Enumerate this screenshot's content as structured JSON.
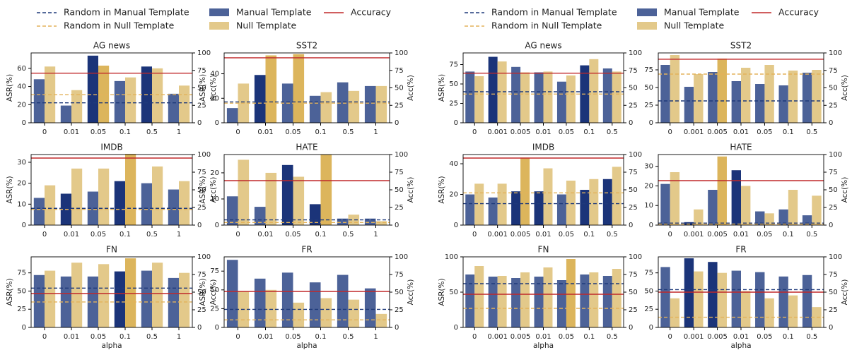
{
  "legends": [
    {
      "entries": [
        {
          "label": "Random in Manual Template",
          "color": "#1f3a7a",
          "style": "dashed"
        },
        {
          "label": "Random in Null Template",
          "color": "#e3b25a",
          "style": "dashed"
        },
        {
          "label": "Manual Template",
          "color": "#4c6298",
          "style": "patch"
        },
        {
          "label": "Null Template",
          "color": "#e3c98a",
          "style": "patch"
        },
        {
          "label": "Accuracy",
          "color": "#c0282a",
          "style": "solid"
        }
      ]
    },
    {
      "entries": [
        {
          "label": "Random in Manual Template",
          "color": "#1f3a7a",
          "style": "dashed"
        },
        {
          "label": "Random in Null Template",
          "color": "#e3b25a",
          "style": "dashed"
        },
        {
          "label": "Manual Template",
          "color": "#4c6298",
          "style": "patch"
        },
        {
          "label": "Null Template",
          "color": "#e3c98a",
          "style": "patch"
        },
        {
          "label": "Accuracy",
          "color": "#c0282a",
          "style": "solid"
        }
      ]
    }
  ],
  "chart_data": [
    {
      "type": "bar",
      "title": "AG news",
      "y_label": "ASR(%)",
      "y2_label": "Acc(%)",
      "categories": [
        "0",
        "0.01",
        "0.05",
        "0.1",
        "0.5",
        "1"
      ],
      "ylim": [
        0,
        77
      ],
      "yticks": [
        0,
        20,
        40,
        60
      ],
      "y2lim": [
        0,
        100
      ],
      "y2ticks": [
        0,
        25,
        50,
        75,
        100
      ],
      "series": [
        {
          "values": [
            48,
            19,
            74,
            46,
            62,
            32
          ],
          "colors": [
            "#4c6298",
            "#4c6298",
            "#1b3479",
            "#4c6298",
            "#1b3479",
            "#4c6298"
          ]
        },
        {
          "values": [
            62,
            36,
            63,
            50,
            60,
            41
          ],
          "colors": [
            "#e3c98a",
            "#e3c98a",
            "#dcb55c",
            "#e3c98a",
            "#e3c98a",
            "#e3c98a"
          ]
        }
      ],
      "random_manual": 22,
      "random_null": 31,
      "accuracy": 71
    },
    {
      "type": "bar",
      "title": "SST2",
      "y_label": "ASR(%)",
      "y2_label": "Acc(%)",
      "categories": [
        "0",
        "0.01",
        "0.05",
        "0.1",
        "0.5",
        "1"
      ],
      "ylim": [
        0,
        57
      ],
      "yticks": [
        0,
        20,
        40
      ],
      "y2lim": [
        0,
        100
      ],
      "y2ticks": [
        0,
        25,
        50,
        75,
        100
      ],
      "series": [
        {
          "values": [
            12,
            39,
            32,
            22,
            33,
            30
          ],
          "colors": [
            "#4c6298",
            "#1b3479",
            "#4c6298",
            "#4c6298",
            "#4c6298",
            "#4c6298"
          ]
        },
        {
          "values": [
            32,
            55,
            56,
            25,
            26,
            30
          ],
          "colors": [
            "#e3c98a",
            "#dcb55c",
            "#dcb55c",
            "#e3c98a",
            "#e3c98a",
            "#e3c98a"
          ]
        }
      ],
      "random_manual": 17,
      "random_null": 16,
      "accuracy": 93
    },
    {
      "type": "bar",
      "title": "IMDB",
      "y_label": "ASR(%)",
      "y2_label": "Acc(%)",
      "categories": [
        "0",
        "0.01",
        "0.05",
        "0.1",
        "0.5",
        "1"
      ],
      "ylim": [
        0,
        33.7
      ],
      "yticks": [
        0,
        10,
        20,
        30
      ],
      "y2lim": [
        0,
        100
      ],
      "y2ticks": [
        0,
        25,
        50,
        75,
        100
      ],
      "series": [
        {
          "values": [
            13,
            15,
            16,
            21,
            20,
            17
          ],
          "colors": [
            "#4c6298",
            "#1b3479",
            "#4c6298",
            "#1b3479",
            "#4c6298",
            "#4c6298"
          ]
        },
        {
          "values": [
            19,
            27,
            27,
            34,
            28,
            21
          ],
          "colors": [
            "#e3c98a",
            "#e3c98a",
            "#e3c98a",
            "#dcb55c",
            "#e3c98a",
            "#e3c98a"
          ]
        }
      ],
      "random_manual": 8,
      "random_null": 7.5,
      "accuracy": 95
    },
    {
      "type": "bar",
      "title": "HATE",
      "y_label": "ASR(%)",
      "y2_label": "Acc(%)",
      "categories": [
        "0",
        "0.01",
        "0.05",
        "0.1",
        "0.5",
        "1"
      ],
      "ylim": [
        0,
        27
      ],
      "yticks": [
        0,
        10,
        20
      ],
      "y2lim": [
        0,
        100
      ],
      "y2ticks": [
        0,
        25,
        50,
        75,
        100
      ],
      "series": [
        {
          "values": [
            11,
            7,
            23,
            8,
            2.5,
            2.5
          ],
          "colors": [
            "#4c6298",
            "#4c6298",
            "#1b3479",
            "#1b3479",
            "#4c6298",
            "#4c6298"
          ]
        },
        {
          "values": [
            25,
            20,
            18.5,
            27,
            4,
            1.5
          ],
          "colors": [
            "#e3c98a",
            "#e3c98a",
            "#e3c98a",
            "#dcb55c",
            "#e3c98a",
            "#e3c98a"
          ]
        }
      ],
      "random_manual": 2,
      "random_null": 1,
      "accuracy": 63
    },
    {
      "type": "bar",
      "title": "FN",
      "x_label": "alpha",
      "y_label": "ASR(%)",
      "y2_label": "Acc(%)",
      "categories": [
        "0",
        "0.01",
        "0.05",
        "0.1",
        "0.5",
        "1"
      ],
      "ylim": [
        0,
        97
      ],
      "yticks": [
        0,
        25,
        50,
        75
      ],
      "y2lim": [
        0,
        100
      ],
      "y2ticks": [
        0,
        25,
        50,
        75,
        100
      ],
      "series": [
        {
          "values": [
            72,
            70,
            70,
            77,
            78,
            68
          ],
          "colors": [
            "#4c6298",
            "#4c6298",
            "#4c6298",
            "#1b3479",
            "#4c6298",
            "#4c6298"
          ]
        },
        {
          "values": [
            78,
            89,
            87,
            95,
            89,
            75
          ],
          "colors": [
            "#e3c98a",
            "#e3c98a",
            "#e3c98a",
            "#dcb55c",
            "#e3c98a",
            "#e3c98a"
          ]
        }
      ],
      "random_manual": 54,
      "random_null": 35,
      "accuracy": 48
    },
    {
      "type": "bar",
      "title": "FR",
      "x_label": "alpha",
      "y_label": "ASR(%)",
      "y2_label": "Acc(%)",
      "categories": [
        "0",
        "0.01",
        "0.05",
        "0.1",
        "0.5",
        "1"
      ],
      "ylim": [
        0,
        94
      ],
      "yticks": [
        0,
        25,
        50,
        75
      ],
      "y2lim": [
        0,
        100
      ],
      "y2ticks": [
        0,
        25,
        50,
        75,
        100
      ],
      "series": [
        {
          "values": [
            90,
            65,
            73,
            60,
            70,
            52
          ],
          "colors": [
            "#4c6298",
            "#4c6298",
            "#4c6298",
            "#4c6298",
            "#4c6298",
            "#4c6298"
          ]
        },
        {
          "values": [
            48,
            50,
            33,
            39,
            37,
            18
          ],
          "colors": [
            "#e3c98a",
            "#e3c98a",
            "#e3c98a",
            "#e3c98a",
            "#e3c98a",
            "#e3c98a"
          ]
        }
      ],
      "random_manual": 24,
      "random_null": 10,
      "accuracy": 51
    },
    {
      "type": "bar",
      "title": "AG news",
      "y_label": "ASR(%)",
      "categories": [
        "0",
        "0.001",
        "0.005",
        "0.01",
        "0.05",
        "0.1",
        "0.5"
      ],
      "ylim": [
        0,
        90
      ],
      "yticks": [
        0,
        25,
        50,
        75
      ],
      "y2lim": [
        0,
        100
      ],
      "y2ticks": [
        0,
        25,
        50,
        75,
        100
      ],
      "series": [
        {
          "values": [
            66,
            85,
            72,
            65,
            53,
            74,
            70
          ],
          "colors": [
            "#4c6298",
            "#1b3479",
            "#4c6298",
            "#4c6298",
            "#4c6298",
            "#1b3479",
            "#4c6298"
          ]
        },
        {
          "values": [
            60,
            79,
            65,
            66,
            61,
            82,
            66
          ],
          "colors": [
            "#e3c98a",
            "#e3c98a",
            "#e3c98a",
            "#e3c98a",
            "#e3c98a",
            "#e3c98a",
            "#e3c98a"
          ]
        }
      ],
      "random_manual": 40,
      "random_null": 37,
      "accuracy": 71
    },
    {
      "type": "bar",
      "title": "SST2",
      "y2_label": "Acc(%)",
      "categories": [
        "0",
        "0.001",
        "0.005",
        "0.01",
        "0.05",
        "0.1",
        "0.5"
      ],
      "ylim": [
        0,
        99
      ],
      "yticks": [
        0,
        25,
        50,
        75
      ],
      "y2lim": [
        0,
        100
      ],
      "y2ticks": [
        0,
        25,
        50,
        75,
        100
      ],
      "series": [
        {
          "values": [
            82,
            51,
            72,
            59,
            55,
            53,
            71
          ],
          "colors": [
            "#4c6298",
            "#4c6298",
            "#4c6298",
            "#4c6298",
            "#4c6298",
            "#4c6298",
            "#4c6298"
          ]
        },
        {
          "values": [
            96,
            69,
            91,
            78,
            82,
            74,
            75
          ],
          "colors": [
            "#e3c98a",
            "#e3c98a",
            "#dcb55c",
            "#e3c98a",
            "#e3c98a",
            "#e3c98a",
            "#e3c98a"
          ]
        }
      ],
      "random_manual": 31,
      "random_null": 69,
      "accuracy": 91
    },
    {
      "type": "bar",
      "title": "IMDB",
      "y_label": "ASR(%)",
      "categories": [
        "0",
        "0.001",
        "0.005",
        "0.01",
        "0.05",
        "0.1",
        "0.5"
      ],
      "ylim": [
        0,
        46
      ],
      "yticks": [
        0,
        20,
        40
      ],
      "y2lim": [
        0,
        100
      ],
      "y2ticks": [
        0,
        25,
        50,
        75,
        100
      ],
      "series": [
        {
          "values": [
            20,
            18,
            22,
            22,
            20,
            23,
            30
          ],
          "colors": [
            "#4c6298",
            "#4c6298",
            "#1b3479",
            "#1b3479",
            "#4c6298",
            "#1b3479",
            "#1b3479"
          ]
        },
        {
          "values": [
            27,
            27,
            44,
            37,
            29,
            30,
            38
          ],
          "colors": [
            "#e3c98a",
            "#e3c98a",
            "#dcb55c",
            "#e3c98a",
            "#e3c98a",
            "#e3c98a",
            "#e3c98a"
          ]
        }
      ],
      "random_manual": 14,
      "random_null": 21,
      "accuracy": 95
    },
    {
      "type": "bar",
      "title": "HATE",
      "y2_label": "Acc(%)",
      "categories": [
        "0",
        "0.001",
        "0.005",
        "0.01",
        "0.05",
        "0.1",
        "0.5"
      ],
      "ylim": [
        0,
        36
      ],
      "yticks": [
        0,
        10,
        20,
        30
      ],
      "y2lim": [
        0,
        100
      ],
      "y2ticks": [
        0,
        25,
        50,
        75,
        100
      ],
      "series": [
        {
          "values": [
            21,
            1.5,
            18,
            28,
            7,
            8,
            5
          ],
          "colors": [
            "#4c6298",
            "#1b3479",
            "#4c6298",
            "#1b3479",
            "#4c6298",
            "#4c6298",
            "#4c6298"
          ]
        },
        {
          "values": [
            27,
            8,
            35,
            20,
            6,
            18,
            15
          ],
          "colors": [
            "#e3c98a",
            "#e3c98a",
            "#dcb55c",
            "#e3c98a",
            "#e3c98a",
            "#e3c98a",
            "#e3c98a"
          ]
        }
      ],
      "random_manual": 1,
      "random_null": 0.5,
      "accuracy": 63
    },
    {
      "type": "bar",
      "title": "FN",
      "x_label": "alpha",
      "y_label": "ASR(%)",
      "categories": [
        "0",
        "0.001",
        "0.005",
        "0.01",
        "0.05",
        "0.1",
        "0.5"
      ],
      "ylim": [
        0,
        100
      ],
      "yticks": [
        0,
        50,
        100
      ],
      "y2lim": [
        0,
        100
      ],
      "y2ticks": [
        0,
        25,
        50,
        75,
        100
      ],
      "series": [
        {
          "values": [
            75,
            72,
            70,
            72,
            67,
            75,
            73
          ],
          "colors": [
            "#4c6298",
            "#4c6298",
            "#4c6298",
            "#4c6298",
            "#4c6298",
            "#4c6298",
            "#4c6298"
          ]
        },
        {
          "values": [
            87,
            73,
            78,
            85,
            97,
            78,
            83
          ],
          "colors": [
            "#e3c98a",
            "#e3c98a",
            "#e3c98a",
            "#e3c98a",
            "#dcb55c",
            "#e3c98a",
            "#e3c98a"
          ]
        }
      ],
      "random_manual": 62,
      "random_null": 27,
      "accuracy": 47
    },
    {
      "type": "bar",
      "title": "FR",
      "x_label": "alpha",
      "y2_label": "Acc(%)",
      "categories": [
        "0",
        "0.001",
        "0.005",
        "0.01",
        "0.05",
        "0.1",
        "0.5"
      ],
      "ylim": [
        0,
        97
      ],
      "yticks": [
        0,
        25,
        50,
        75
      ],
      "y2lim": [
        0,
        100
      ],
      "y2ticks": [
        0,
        25,
        50,
        75,
        100
      ],
      "series": [
        {
          "values": [
            83,
            95,
            90,
            78,
            76,
            70,
            72
          ],
          "colors": [
            "#4c6298",
            "#1b3479",
            "#1b3479",
            "#4c6298",
            "#4c6298",
            "#4c6298",
            "#4c6298"
          ]
        },
        {
          "values": [
            40,
            77,
            75,
            50,
            40,
            44,
            28
          ],
          "colors": [
            "#e3c98a",
            "#e3c98a",
            "#e3c98a",
            "#e3c98a",
            "#e3c98a",
            "#e3c98a",
            "#e3c98a"
          ]
        }
      ],
      "random_manual": 52,
      "random_null": 14,
      "accuracy": 50
    }
  ]
}
